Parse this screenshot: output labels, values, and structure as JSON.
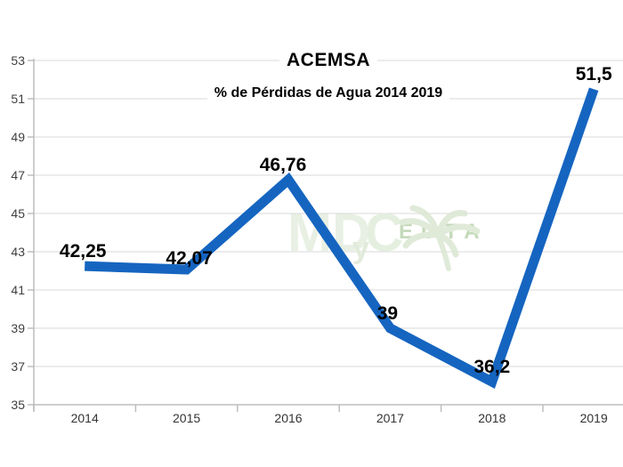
{
  "chart_data": {
    "type": "line",
    "title": "ACEMSA",
    "subtitle": "% de Pérdidas de Agua 2014 2019",
    "categories": [
      "2014",
      "2015",
      "2016",
      "2017",
      "2018",
      "2019"
    ],
    "values": [
      42.25,
      42.07,
      46.76,
      39,
      36.2,
      51.5
    ],
    "point_labels": [
      "42,25",
      "42,07",
      "46,76",
      "39",
      "36,2",
      "51,5"
    ],
    "ylabel": "",
    "xlabel": "",
    "ylim": [
      35,
      53
    ],
    "ytick_interval": 2,
    "grid": "horizontal",
    "legend_position": "none",
    "line_color": "#1565c0",
    "grid_color": "#d9d9d9",
    "axis_color": "#bdbdbd",
    "tick_label_color": "#3f3f3f",
    "data_label_color": "#000000"
  },
  "watermark": {
    "part1": "MD",
    "part2": "y",
    "part3": "C",
    "part4": "EUTA",
    "icon": "palm-tree",
    "color_light": "#e6eee1",
    "color_green": "#bed6b3"
  }
}
